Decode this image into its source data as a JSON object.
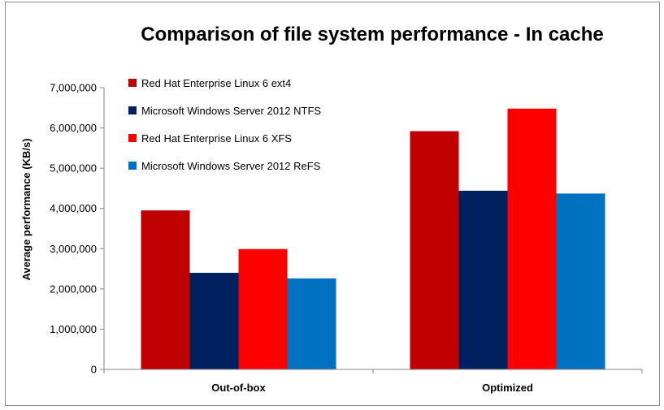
{
  "chart_data": {
    "type": "bar",
    "title": "Comparison of file system performance - In cache",
    "xlabel": "",
    "ylabel": "Average performance (KB/s)",
    "ylim": [
      0,
      7000000
    ],
    "yticks": [
      "0",
      "1,000,000",
      "2,000,000",
      "3,000,000",
      "4,000,000",
      "5,000,000",
      "6,000,000",
      "7,000,000"
    ],
    "categories": [
      "Out-of-box",
      "Optimized"
    ],
    "grid": false,
    "legend_position": "top-left",
    "series": [
      {
        "name": "Red Hat Enterprise Linux 6 ext4",
        "color": "#c00000",
        "values": [
          3950000,
          5920000
        ]
      },
      {
        "name": "Microsoft Windows Server 2012 NTFS",
        "color": "#002060",
        "values": [
          2400000,
          4440000
        ]
      },
      {
        "name": "Red Hat Enterprise Linux 6 XFS",
        "color": "#ff0000",
        "values": [
          2990000,
          6480000
        ]
      },
      {
        "name": "Microsoft Windows Server 2012 ReFS",
        "color": "#0070c0",
        "values": [
          2260000,
          4370000
        ]
      }
    ]
  }
}
